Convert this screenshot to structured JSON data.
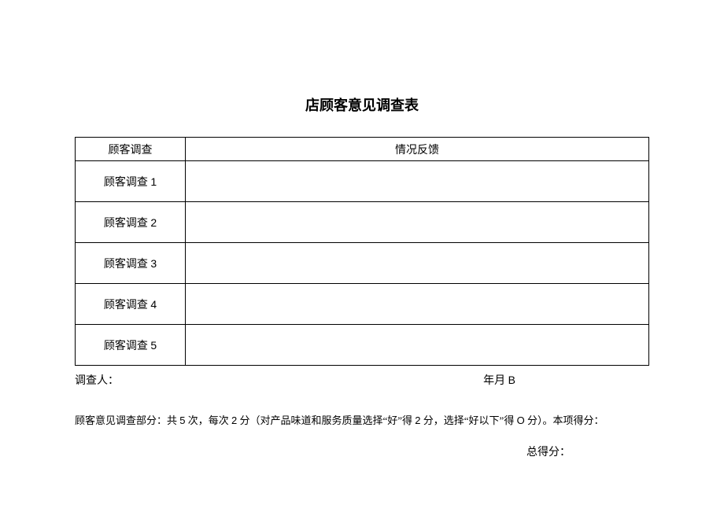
{
  "title": "店顾客意见调查表",
  "table": {
    "headers": {
      "col1": "顾客调查",
      "col2": "情况反馈"
    },
    "rows": [
      {
        "label_prefix": "顾客调查 ",
        "label_num": "1",
        "feedback": ""
      },
      {
        "label_prefix": "顾客调查 ",
        "label_num": "2",
        "feedback": ""
      },
      {
        "label_prefix": "顾客调查 ",
        "label_num": "3",
        "feedback": ""
      },
      {
        "label_prefix": "顾客调查 ",
        "label_num": "4",
        "feedback": ""
      },
      {
        "label_prefix": "顾客调查 ",
        "label_num": "5",
        "feedback": ""
      }
    ]
  },
  "footer": {
    "investigator_label": "调查人：",
    "date_prefix": "年月 ",
    "date_char": "B"
  },
  "note": {
    "p1": "顾客意见调查部分：共 ",
    "n1": "5",
    "p2": " 次，每次 ",
    "n2": "2",
    "p3": " 分（对产品味道和服务质量选择“好”得 ",
    "n3": "2",
    "p4": " 分，选择“好以下”得 ",
    "n4": "O",
    "p5": " 分）。本项得分："
  },
  "total_score_label": "总得分："
}
